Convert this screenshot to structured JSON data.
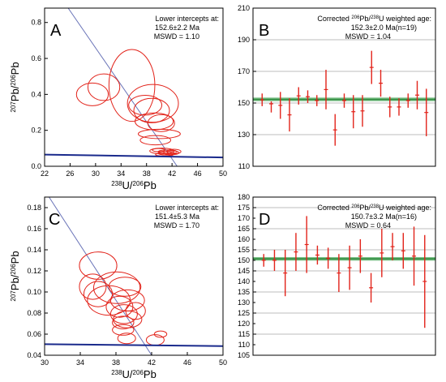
{
  "chart_data": [
    {
      "panel": "A",
      "type": "scatter",
      "subtype": "tera-wasserburg-concordia",
      "annotation": [
        "Lower intercepts at:",
        "152.6±2.2 Ma",
        "MSWD = 1.10"
      ],
      "xlabel": "238U/206Pb",
      "ylabel": "207Pb/206Pb",
      "xlim": [
        22,
        50
      ],
      "ylim": [
        0,
        0.88
      ],
      "xticks": [
        22,
        26,
        30,
        34,
        38,
        42,
        46,
        50
      ],
      "yticks": [
        0.0,
        0.2,
        0.4,
        0.6,
        0.8
      ],
      "ytick_labels": [
        "0.0",
        "0.2",
        "0.4",
        "0.6",
        "0.8"
      ],
      "regression_line": {
        "x": [
          25.7,
          42.8
        ],
        "y": [
          0.88,
          0.0
        ]
      },
      "concordia_line": {
        "x": [
          22,
          50
        ],
        "y": [
          0.065,
          0.049
        ]
      },
      "ellipses": [
        {
          "cx": 29.5,
          "cy": 0.4,
          "rx": 2.5,
          "ry": 0.063
        },
        {
          "cx": 31.3,
          "cy": 0.44,
          "rx": 2.5,
          "ry": 0.074
        },
        {
          "cx": 35.7,
          "cy": 0.45,
          "rx": 3.6,
          "ry": 0.2
        },
        {
          "cx": 39.0,
          "cy": 0.35,
          "rx": 4.0,
          "ry": 0.105
        },
        {
          "cx": 38.8,
          "cy": 0.31,
          "rx": 2.8,
          "ry": 0.068
        },
        {
          "cx": 37.8,
          "cy": 0.34,
          "rx": 2.6,
          "ry": 0.055
        },
        {
          "cx": 39.2,
          "cy": 0.25,
          "rx": 3.0,
          "ry": 0.047
        },
        {
          "cx": 40.3,
          "cy": 0.24,
          "rx": 2.1,
          "ry": 0.047
        },
        {
          "cx": 40.0,
          "cy": 0.18,
          "rx": 3.3,
          "ry": 0.026
        },
        {
          "cx": 39.4,
          "cy": 0.145,
          "rx": 2.4,
          "ry": 0.026
        },
        {
          "cx": 40.4,
          "cy": 0.085,
          "rx": 1.9,
          "ry": 0.016
        },
        {
          "cx": 41.3,
          "cy": 0.08,
          "rx": 1.5,
          "ry": 0.011
        },
        {
          "cx": 41.9,
          "cy": 0.075,
          "rx": 1.2,
          "ry": 0.011
        },
        {
          "cx": 41.1,
          "cy": 0.072,
          "rx": 1.3,
          "ry": 0.009
        },
        {
          "cx": 42.3,
          "cy": 0.082,
          "rx": 1.1,
          "ry": 0.013
        },
        {
          "cx": 39.9,
          "cy": 0.09,
          "rx": 1.0,
          "ry": 0.009
        },
        {
          "cx": 40.8,
          "cy": 0.065,
          "rx": 1.4,
          "ry": 0.008
        }
      ]
    },
    {
      "panel": "B",
      "type": "errorbar",
      "annotation": [
        "Corrected {206}Pb/{238}U weighted age:",
        "152.3±2.0 Ma(n=19)",
        "MSWD = 1.04"
      ],
      "ylim": [
        110,
        210
      ],
      "yticks": [
        110,
        130,
        150,
        170,
        190,
        210
      ],
      "weighted_mean": 152.3,
      "bars": [
        {
          "mid": 152.0,
          "lo": 148,
          "hi": 156
        },
        {
          "mid": 149.5,
          "lo": 144,
          "hi": 151
        },
        {
          "mid": 148.5,
          "lo": 140,
          "hi": 157
        },
        {
          "mid": 142.5,
          "lo": 132,
          "hi": 153
        },
        {
          "mid": 154.5,
          "lo": 149,
          "hi": 160
        },
        {
          "mid": 154.0,
          "lo": 150,
          "hi": 158
        },
        {
          "mid": 151.5,
          "lo": 148,
          "hi": 155
        },
        {
          "mid": 158.5,
          "lo": 146,
          "hi": 171
        },
        {
          "mid": 133.0,
          "lo": 123,
          "hi": 143
        },
        {
          "mid": 151.5,
          "lo": 147,
          "hi": 156
        },
        {
          "mid": 144.5,
          "lo": 134,
          "hi": 155
        },
        {
          "mid": 145.0,
          "lo": 135,
          "hi": 155
        },
        {
          "mid": 172.5,
          "lo": 162,
          "hi": 183
        },
        {
          "mid": 162.5,
          "lo": 154,
          "hi": 171
        },
        {
          "mid": 147.5,
          "lo": 141,
          "hi": 154
        },
        {
          "mid": 147.5,
          "lo": 142,
          "hi": 153
        },
        {
          "mid": 151.5,
          "lo": 147,
          "hi": 156
        },
        {
          "mid": 155.0,
          "lo": 146,
          "hi": 164
        },
        {
          "mid": 144.0,
          "lo": 129,
          "hi": 159
        }
      ]
    },
    {
      "panel": "C",
      "type": "scatter",
      "subtype": "tera-wasserburg-concordia",
      "annotation": [
        "Lower intercepts at:",
        "151.4±5.3 Ma",
        "MSWD = 1.70"
      ],
      "xlabel": "238U/206Pb",
      "ylabel": "207Pb/206Pb",
      "xlim": [
        30,
        50
      ],
      "ylim": [
        0.04,
        0.19
      ],
      "xticks": [
        30,
        34,
        38,
        42,
        46,
        50
      ],
      "yticks": [
        0.04,
        0.06,
        0.08,
        0.1,
        0.12,
        0.14,
        0.16,
        0.18
      ],
      "ytick_labels": [
        "0.04",
        "0.06",
        "0.08",
        "0.10",
        "0.12",
        "0.14",
        "0.16",
        "0.18"
      ],
      "regression_line": {
        "x": [
          30.5,
          42.0
        ],
        "y": [
          0.19,
          0.04
        ]
      },
      "concordia_line": {
        "x": [
          30,
          50
        ],
        "y": [
          0.0505,
          0.0487
        ]
      },
      "ellipses": [
        {
          "cx": 36.0,
          "cy": 0.125,
          "rx": 2.1,
          "ry": 0.013
        },
        {
          "cx": 35.4,
          "cy": 0.105,
          "rx": 1.5,
          "ry": 0.012
        },
        {
          "cx": 36.0,
          "cy": 0.098,
          "rx": 1.6,
          "ry": 0.012
        },
        {
          "cx": 37.2,
          "cy": 0.092,
          "rx": 2.4,
          "ry": 0.014
        },
        {
          "cx": 38.1,
          "cy": 0.104,
          "rx": 2.6,
          "ry": 0.015
        },
        {
          "cx": 39.0,
          "cy": 0.105,
          "rx": 1.8,
          "ry": 0.009
        },
        {
          "cx": 39.3,
          "cy": 0.092,
          "rx": 1.9,
          "ry": 0.01
        },
        {
          "cx": 38.4,
          "cy": 0.086,
          "rx": 1.5,
          "ry": 0.01
        },
        {
          "cx": 38.9,
          "cy": 0.079,
          "rx": 1.5,
          "ry": 0.009
        },
        {
          "cx": 39.3,
          "cy": 0.074,
          "rx": 1.6,
          "ry": 0.008
        },
        {
          "cx": 38.8,
          "cy": 0.071,
          "rx": 1.2,
          "ry": 0.006
        },
        {
          "cx": 38.8,
          "cy": 0.064,
          "rx": 1.2,
          "ry": 0.005
        },
        {
          "cx": 39.2,
          "cy": 0.056,
          "rx": 1.0,
          "ry": 0.005
        },
        {
          "cx": 40.2,
          "cy": 0.082,
          "rx": 1.1,
          "ry": 0.008
        },
        {
          "cx": 42.4,
          "cy": 0.0545,
          "rx": 1.0,
          "ry": 0.005
        },
        {
          "cx": 43.0,
          "cy": 0.06,
          "rx": 0.7,
          "ry": 0.003
        }
      ]
    },
    {
      "panel": "D",
      "type": "errorbar",
      "annotation": [
        "Corrected {206}Pb/{238}U weighted age:",
        "150.7±3.2 Ma(n=16)",
        "MSWD = 0.64"
      ],
      "ylim": [
        105,
        180
      ],
      "yticks": [
        105,
        115,
        125,
        135,
        145,
        155,
        165,
        175
      ],
      "extra_ytick_labels": [
        110,
        120,
        130,
        140,
        150,
        160,
        170,
        180
      ],
      "weighted_mean": 150.7,
      "bars": [
        {
          "mid": 150.0,
          "lo": 147,
          "hi": 153
        },
        {
          "mid": 150.0,
          "lo": 145,
          "hi": 155
        },
        {
          "mid": 144.0,
          "lo": 133,
          "hi": 155
        },
        {
          "mid": 154.0,
          "lo": 145,
          "hi": 163
        },
        {
          "mid": 157.5,
          "lo": 144,
          "hi": 171
        },
        {
          "mid": 152.5,
          "lo": 148,
          "hi": 157
        },
        {
          "mid": 151.0,
          "lo": 146,
          "hi": 156
        },
        {
          "mid": 144.0,
          "lo": 135,
          "hi": 153
        },
        {
          "mid": 146.5,
          "lo": 136,
          "hi": 157
        },
        {
          "mid": 152.0,
          "lo": 144,
          "hi": 160
        },
        {
          "mid": 137.0,
          "lo": 130,
          "hi": 144
        },
        {
          "mid": 153.5,
          "lo": 142,
          "hi": 165
        },
        {
          "mid": 156.5,
          "lo": 150,
          "hi": 163
        },
        {
          "mid": 154.5,
          "lo": 146,
          "hi": 163
        },
        {
          "mid": 152.0,
          "lo": 138,
          "hi": 166
        },
        {
          "mid": 140.0,
          "lo": 118,
          "hi": 162
        }
      ]
    }
  ],
  "colors": {
    "ellipse": "#e2231a",
    "errorbar": "#e2231a",
    "mean_line": "#2e8b3e",
    "mean_line_outer": "#7ec18a",
    "regression": "#6a74b8",
    "concordia": "#1a2a8c",
    "grid": "#bdbdbd",
    "axis": "#000000"
  }
}
